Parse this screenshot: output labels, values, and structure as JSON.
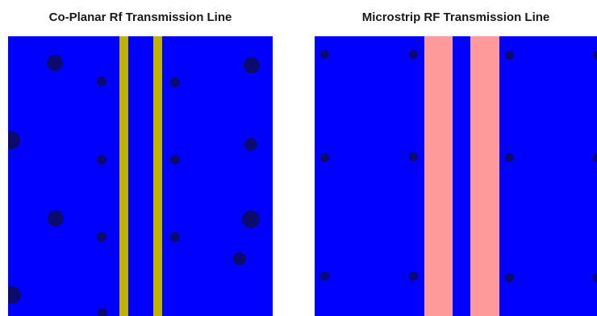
{
  "panels": {
    "coplanar": {
      "title": "Co-Planar Rf Transmission Line"
    },
    "microstrip": {
      "title": "Microstrip RF Transmission Line"
    }
  },
  "colors": {
    "substrate": "#0000ff",
    "coplanar_conductor": "#bdb300",
    "microstrip_conductor": "#ff9a9a",
    "via": "#0b0b6e"
  }
}
